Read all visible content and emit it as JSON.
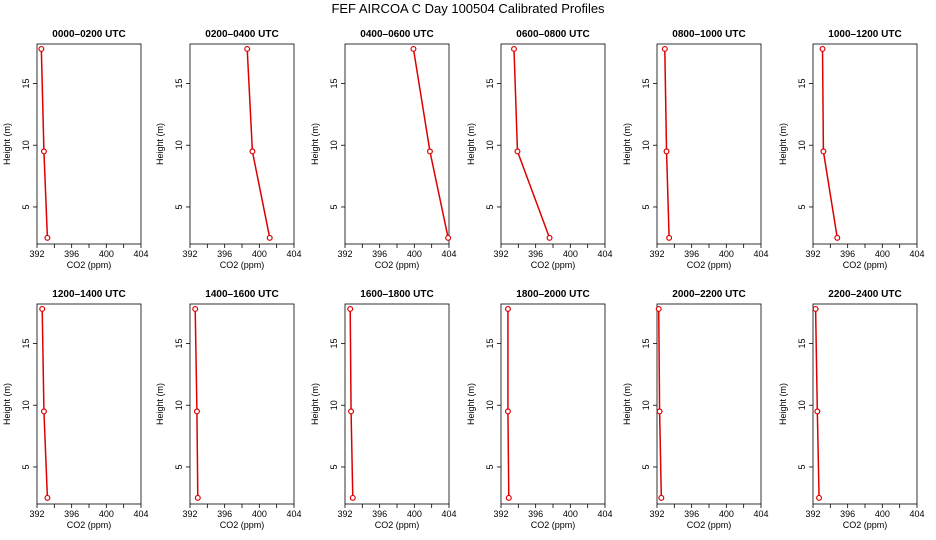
{
  "figure": {
    "title": "FEF AIRCOA C  Day 100504  Calibrated Profiles"
  },
  "style": {
    "line_color": "#dd0000",
    "marker_color": "#dd0000",
    "axis_color": "#000000"
  },
  "chart_data": [
    {
      "type": "line",
      "title": "0000–0200 UTC",
      "xlabel": "CO2 (ppm)",
      "ylabel": "Height (m)",
      "xlim": [
        392,
        404
      ],
      "ylim": [
        2,
        18.2
      ],
      "xticks": [
        392,
        396,
        400,
        404
      ],
      "xticks_minor": [
        394,
        398,
        402
      ],
      "yticks": [
        5,
        10,
        15
      ],
      "x": [
        393.2,
        392.8,
        392.5
      ],
      "y": [
        2.5,
        9.5,
        17.8
      ]
    },
    {
      "type": "line",
      "title": "0200–0400 UTC",
      "xlabel": "CO2 (ppm)",
      "ylabel": "Height (m)",
      "xlim": [
        392,
        404
      ],
      "ylim": [
        2,
        18.2
      ],
      "xticks": [
        392,
        396,
        400,
        404
      ],
      "xticks_minor": [
        394,
        398,
        402
      ],
      "yticks": [
        5,
        10,
        15
      ],
      "x": [
        401.2,
        399.2,
        398.6
      ],
      "y": [
        2.5,
        9.5,
        17.8
      ]
    },
    {
      "type": "line",
      "title": "0400–0600 UTC",
      "xlabel": "CO2 (ppm)",
      "ylabel": "Height (m)",
      "xlim": [
        392,
        404
      ],
      "ylim": [
        2,
        18.2
      ],
      "xticks": [
        392,
        396,
        400,
        404
      ],
      "xticks_minor": [
        394,
        398,
        402
      ],
      "yticks": [
        5,
        10,
        15
      ],
      "x": [
        403.9,
        401.8,
        399.9
      ],
      "y": [
        2.5,
        9.5,
        17.8
      ]
    },
    {
      "type": "line",
      "title": "0600–0800 UTC",
      "xlabel": "CO2 (ppm)",
      "ylabel": "Height (m)",
      "xlim": [
        392,
        404
      ],
      "ylim": [
        2,
        18.2
      ],
      "xticks": [
        392,
        396,
        400,
        404
      ],
      "xticks_minor": [
        394,
        398,
        402
      ],
      "yticks": [
        5,
        10,
        15
      ],
      "x": [
        397.6,
        393.9,
        393.5
      ],
      "y": [
        2.5,
        9.5,
        17.8
      ]
    },
    {
      "type": "line",
      "title": "0800–1000 UTC",
      "xlabel": "CO2 (ppm)",
      "ylabel": "Height (m)",
      "xlim": [
        392,
        404
      ],
      "ylim": [
        2,
        18.2
      ],
      "xticks": [
        392,
        396,
        400,
        404
      ],
      "xticks_minor": [
        394,
        398,
        402
      ],
      "yticks": [
        5,
        10,
        15
      ],
      "x": [
        393.4,
        393.1,
        392.9
      ],
      "y": [
        2.5,
        9.5,
        17.8
      ]
    },
    {
      "type": "line",
      "title": "1000–1200 UTC",
      "xlabel": "CO2 (ppm)",
      "ylabel": "Height (m)",
      "xlim": [
        392,
        404
      ],
      "ylim": [
        2,
        18.2
      ],
      "xticks": [
        392,
        396,
        400,
        404
      ],
      "xticks_minor": [
        394,
        398,
        402
      ],
      "yticks": [
        5,
        10,
        15
      ],
      "x": [
        394.8,
        393.2,
        393.1
      ],
      "y": [
        2.5,
        9.5,
        17.8
      ]
    },
    {
      "type": "line",
      "title": "1200–1400 UTC",
      "xlabel": "CO2 (ppm)",
      "ylabel": "Height (m)",
      "xlim": [
        392,
        404
      ],
      "ylim": [
        2,
        18.2
      ],
      "xticks": [
        392,
        396,
        400,
        404
      ],
      "xticks_minor": [
        394,
        398,
        402
      ],
      "yticks": [
        5,
        10,
        15
      ],
      "x": [
        393.2,
        392.8,
        392.6
      ],
      "y": [
        2.5,
        9.5,
        17.8
      ]
    },
    {
      "type": "line",
      "title": "1400–1600 UTC",
      "xlabel": "CO2 (ppm)",
      "ylabel": "Height (m)",
      "xlim": [
        392,
        404
      ],
      "ylim": [
        2,
        18.2
      ],
      "xticks": [
        392,
        396,
        400,
        404
      ],
      "xticks_minor": [
        394,
        398,
        402
      ],
      "yticks": [
        5,
        10,
        15
      ],
      "x": [
        392.9,
        392.8,
        392.6
      ],
      "y": [
        2.5,
        9.5,
        17.8
      ]
    },
    {
      "type": "line",
      "title": "1600–1800 UTC",
      "xlabel": "CO2 (ppm)",
      "ylabel": "Height (m)",
      "xlim": [
        392,
        404
      ],
      "ylim": [
        2,
        18.2
      ],
      "xticks": [
        392,
        396,
        400,
        404
      ],
      "xticks_minor": [
        394,
        398,
        402
      ],
      "yticks": [
        5,
        10,
        15
      ],
      "x": [
        392.9,
        392.7,
        392.6
      ],
      "y": [
        2.5,
        9.5,
        17.8
      ]
    },
    {
      "type": "line",
      "title": "1800–2000 UTC",
      "xlabel": "CO2 (ppm)",
      "ylabel": "Height (m)",
      "xlim": [
        392,
        404
      ],
      "ylim": [
        2,
        18.2
      ],
      "xticks": [
        392,
        396,
        400,
        404
      ],
      "xticks_minor": [
        394,
        398,
        402
      ],
      "yticks": [
        5,
        10,
        15
      ],
      "x": [
        392.9,
        392.8,
        392.8
      ],
      "y": [
        2.5,
        9.5,
        17.8
      ]
    },
    {
      "type": "line",
      "title": "2000–2200 UTC",
      "xlabel": "CO2 (ppm)",
      "ylabel": "Height (m)",
      "xlim": [
        392,
        404
      ],
      "ylim": [
        2,
        18.2
      ],
      "xticks": [
        392,
        396,
        400,
        404
      ],
      "xticks_minor": [
        394,
        398,
        402
      ],
      "yticks": [
        5,
        10,
        15
      ],
      "x": [
        392.5,
        392.3,
        392.2
      ],
      "y": [
        2.5,
        9.5,
        17.8
      ]
    },
    {
      "type": "line",
      "title": "2200–2400 UTC",
      "xlabel": "CO2 (ppm)",
      "ylabel": "Height (m)",
      "xlim": [
        392,
        404
      ],
      "ylim": [
        2,
        18.2
      ],
      "xticks": [
        392,
        396,
        400,
        404
      ],
      "xticks_minor": [
        394,
        398,
        402
      ],
      "yticks": [
        5,
        10,
        15
      ],
      "x": [
        392.7,
        392.5,
        392.3
      ],
      "y": [
        2.5,
        9.5,
        17.8
      ]
    }
  ]
}
